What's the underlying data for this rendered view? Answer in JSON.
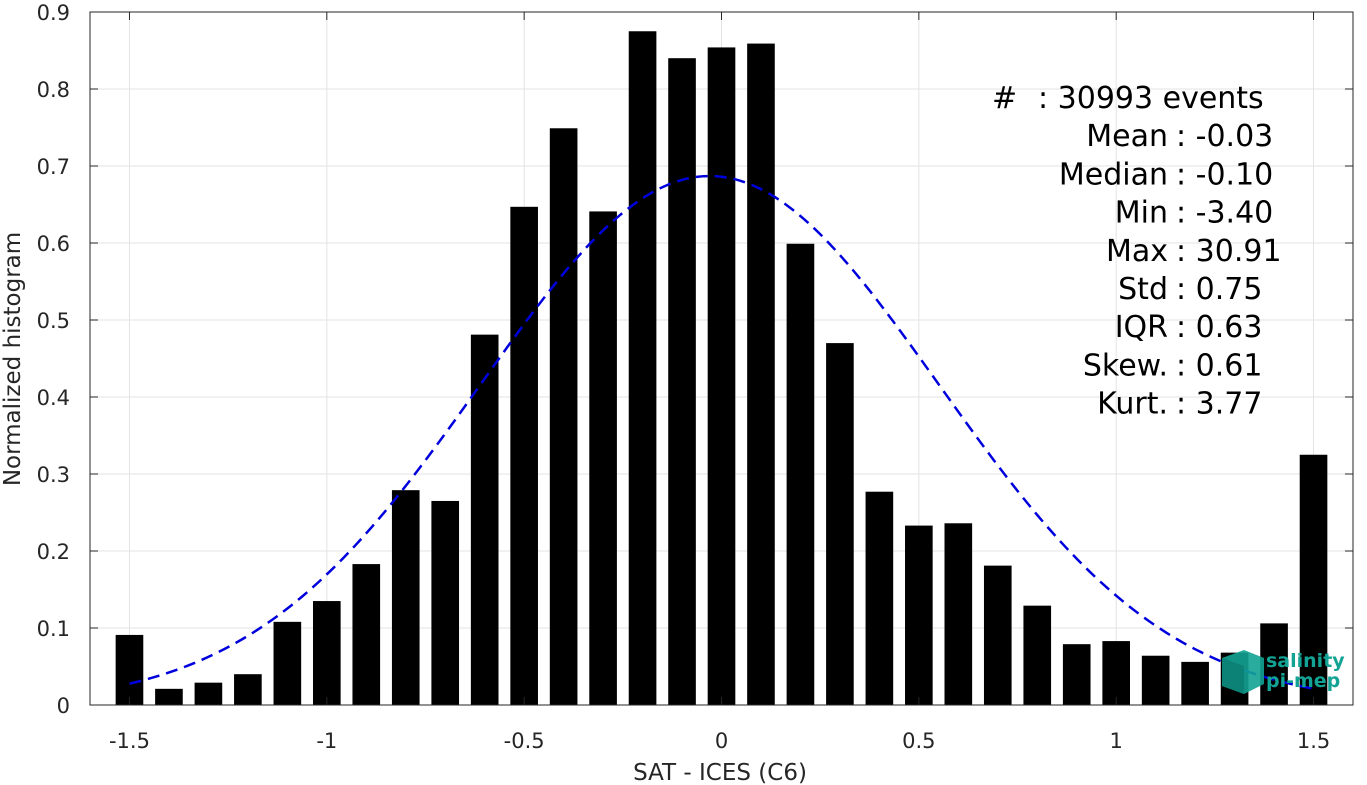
{
  "chart_data": {
    "type": "bar",
    "xlabel": "SAT - ICES (C6)",
    "ylabel": "Normalized histogram",
    "xlim": [
      -1.6,
      1.6
    ],
    "ylim": [
      0,
      0.9
    ],
    "xticks": [
      -1.5,
      -1,
      -0.5,
      0,
      0.5,
      1,
      1.5
    ],
    "xtick_labels": [
      "-1.5",
      "-1",
      "-0.5",
      "0",
      "0.5",
      "1",
      "1.5"
    ],
    "yticks": [
      0,
      0.1,
      0.2,
      0.3,
      0.4,
      0.5,
      0.6,
      0.7,
      0.8,
      0.9
    ],
    "ytick_labels": [
      "0",
      "0.1",
      "0.2",
      "0.3",
      "0.4",
      "0.5",
      "0.6",
      "0.7",
      "0.8",
      "0.9"
    ],
    "grid": true,
    "bar_width": 0.07,
    "bar_color": "#000000",
    "bins": [
      -1.5,
      -1.4,
      -1.3,
      -1.2,
      -1.1,
      -1.0,
      -0.9,
      -0.8,
      -0.7,
      -0.6,
      -0.5,
      -0.4,
      -0.3,
      -0.2,
      -0.1,
      0.0,
      0.1,
      0.2,
      0.3,
      0.4,
      0.5,
      0.6,
      0.7,
      0.8,
      0.9,
      1.0,
      1.1,
      1.2,
      1.3,
      1.4,
      1.5
    ],
    "values": [
      0.091,
      0.021,
      0.029,
      0.04,
      0.108,
      0.135,
      0.183,
      0.279,
      0.265,
      0.481,
      0.647,
      0.749,
      0.641,
      0.875,
      0.84,
      0.854,
      0.859,
      0.599,
      0.47,
      0.277,
      0.233,
      0.236,
      0.181,
      0.129,
      0.079,
      0.083,
      0.064,
      0.056,
      0.068,
      0.106,
      0.325
    ],
    "fit_curve": {
      "style": "dashed",
      "color": "#0000dd",
      "mean": -0.03,
      "std": 0.58,
      "peak": 0.687,
      "x_range": [
        -1.5,
        1.5
      ]
    },
    "stats_lines": [
      "#  : 30993 events",
      "Mean : -0.03",
      "Median : -0.10",
      "Min : -3.40",
      "Max : 30.91",
      "Std : 0.75",
      "IQR : 0.63",
      "Skew. : 0.61",
      "Kurt. : 3.77"
    ]
  },
  "logo": {
    "line1": "salinity",
    "line2": "pi-mep",
    "color": "#12a394"
  }
}
